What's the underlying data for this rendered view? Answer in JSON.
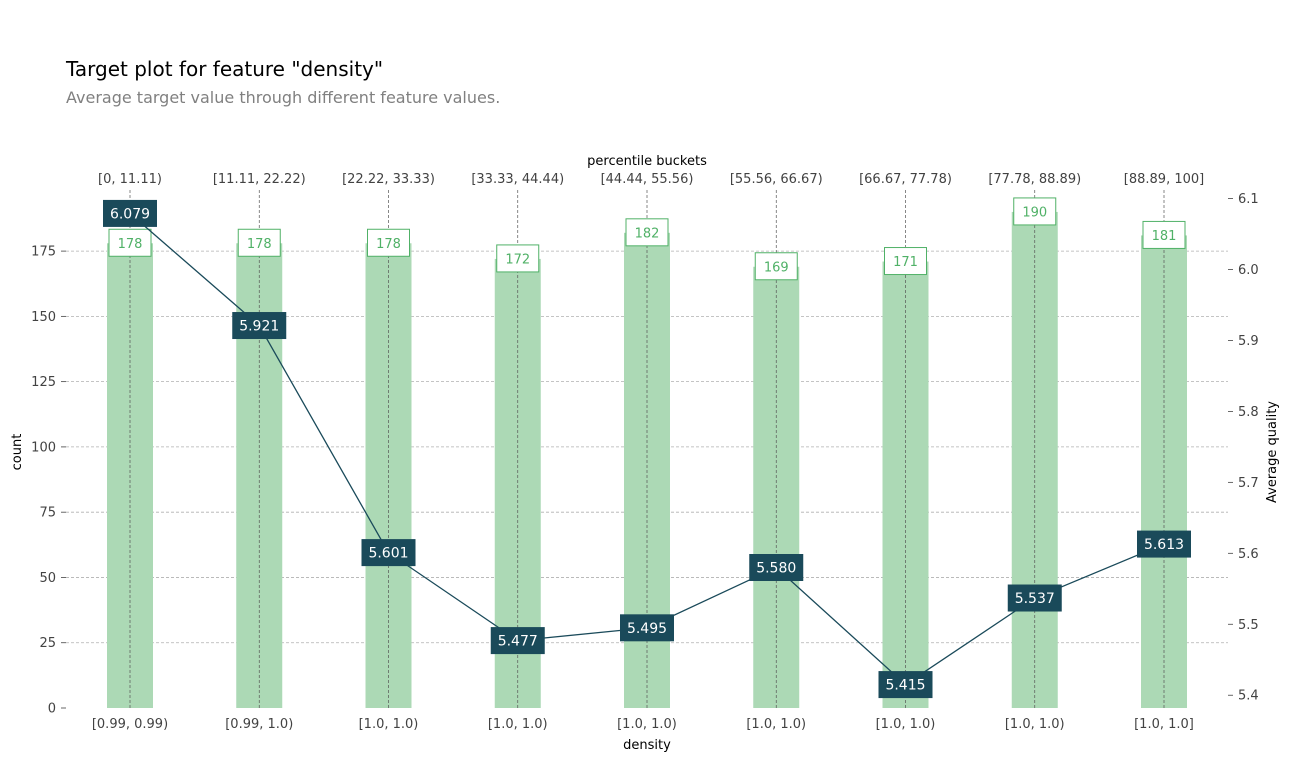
{
  "chart_data": {
    "type": "bar",
    "title": "Target plot for feature \"density\"",
    "subtitle": "Average target value through different feature values.",
    "xlabel": "density",
    "top_xlabel": "percentile buckets",
    "ylabel_left": "count",
    "ylabel_right": "Average quality",
    "categories": [
      "[0.99, 0.99)",
      "[0.99, 1.0)",
      "[1.0, 1.0)",
      "[1.0, 1.0)",
      "[1.0, 1.0)",
      "[1.0, 1.0)",
      "[1.0, 1.0)",
      "[1.0, 1.0)",
      "[1.0, 1.0]"
    ],
    "top_categories": [
      "[0, 11.11)",
      "[11.11, 22.22)",
      "[22.22, 33.33)",
      "[33.33, 44.44)",
      "[44.44, 55.56)",
      "[55.56, 66.67)",
      "[66.67, 77.78)",
      "[77.78, 88.89)",
      "[88.89, 100]"
    ],
    "series": [
      {
        "name": "count",
        "type": "bar",
        "axis": "left",
        "values": [
          178,
          178,
          178,
          172,
          182,
          169,
          171,
          190,
          181
        ],
        "labels": [
          "178",
          "178",
          "178",
          "172",
          "182",
          "169",
          "171",
          "190",
          "181"
        ]
      },
      {
        "name": "Average quality",
        "type": "line",
        "axis": "right",
        "values": [
          6.079,
          5.921,
          5.601,
          5.477,
          5.495,
          5.58,
          5.415,
          5.537,
          5.613
        ],
        "labels": [
          "6.079",
          "5.921",
          "5.601",
          "5.477",
          "5.495",
          "5.580",
          "5.415",
          "5.537",
          "5.613"
        ]
      }
    ],
    "ylim_left": [
      0,
      198.4
    ],
    "ylim_right": [
      5.382,
      6.112
    ],
    "yticks_left": [
      "0",
      "25",
      "50",
      "75",
      "100",
      "125",
      "150",
      "175"
    ],
    "yticks_right": [
      "5.4",
      "5.5",
      "5.6",
      "5.7",
      "5.8",
      "5.9",
      "6.0",
      "6.1"
    ],
    "grid": true,
    "colors": {
      "bar": "#acd9b5",
      "count_label": "#50b167",
      "line": "#1a4a5a"
    }
  }
}
